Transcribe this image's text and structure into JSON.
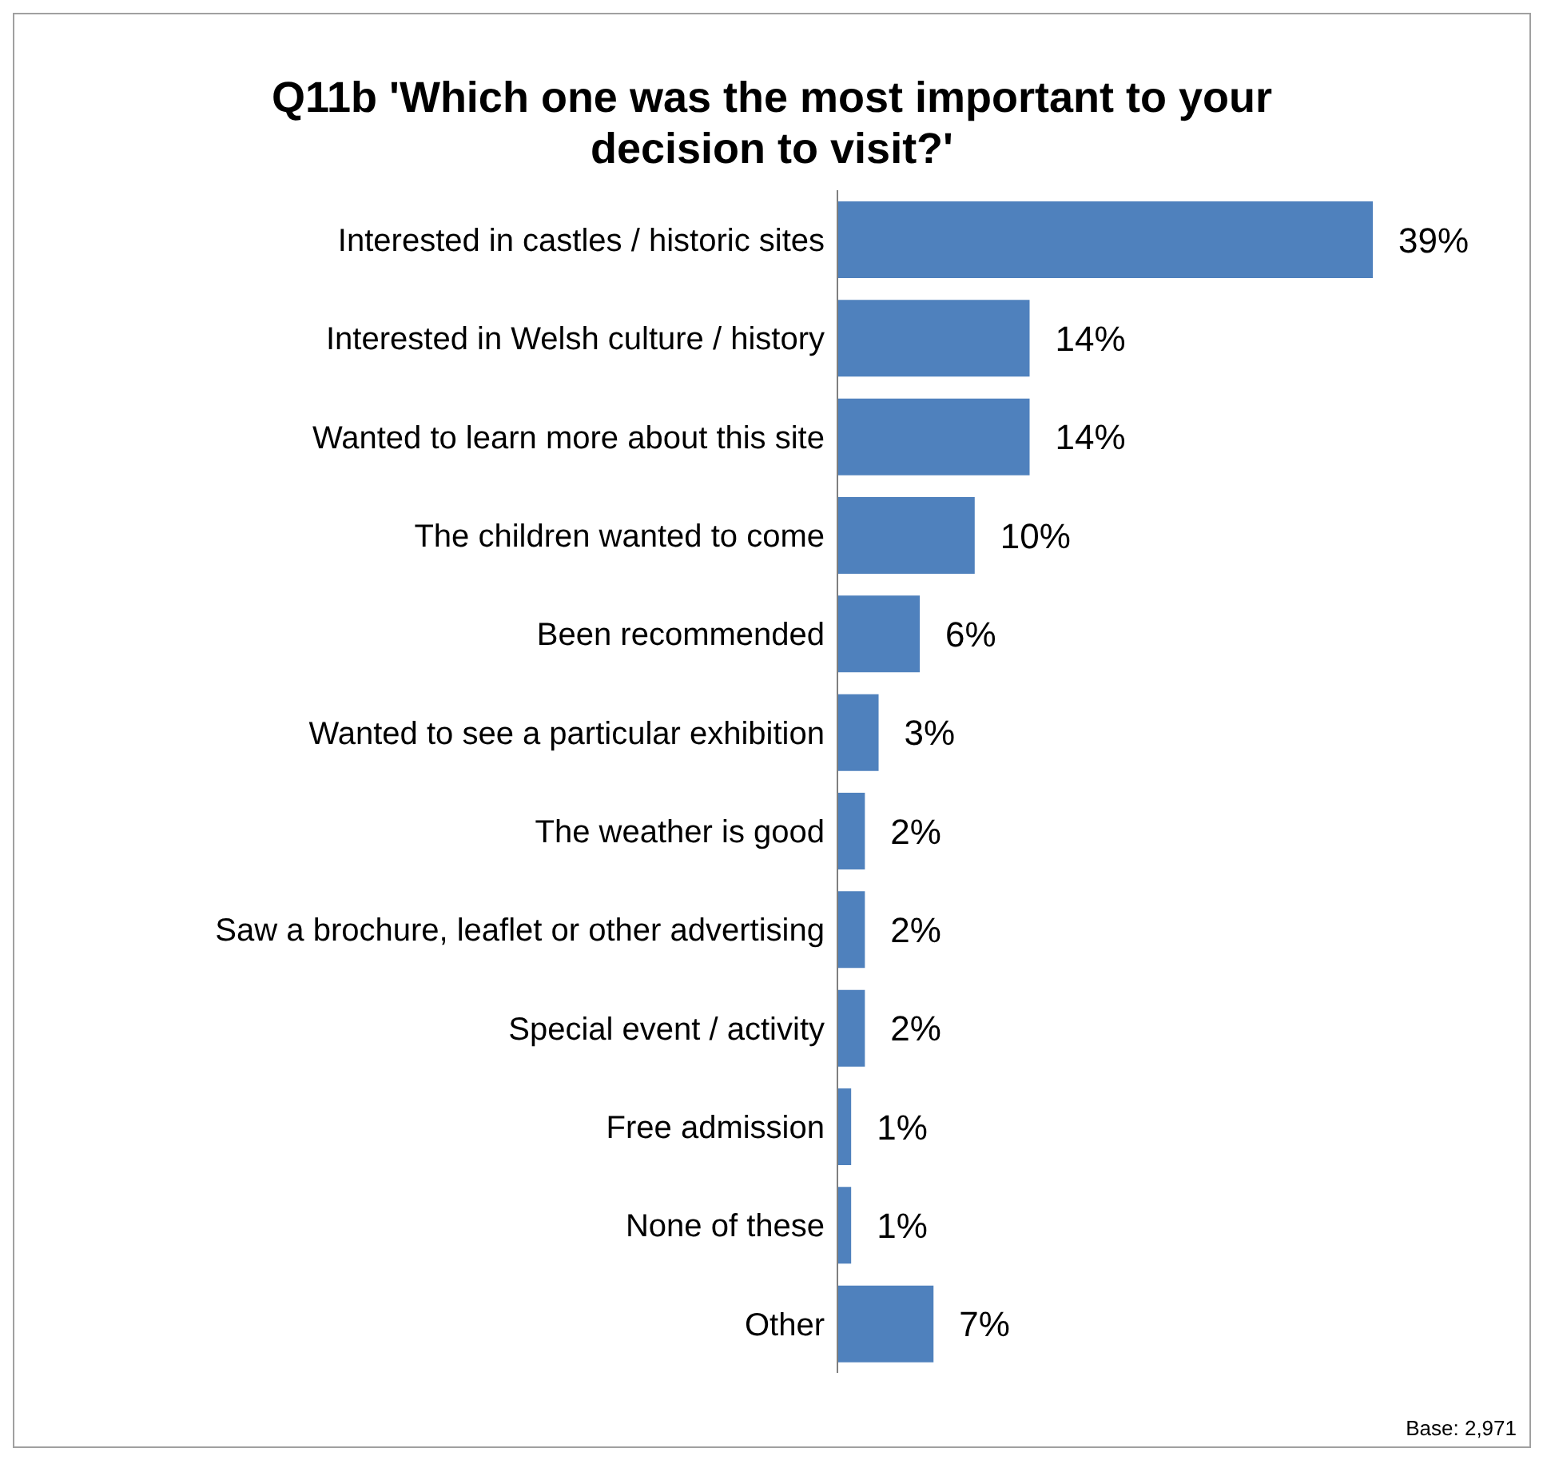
{
  "chart_data": {
    "type": "bar",
    "orientation": "horizontal",
    "title": "Q11b 'Which one was the most important to your decision to visit?'",
    "categories": [
      "Interested in castles / historic sites",
      "Interested in Welsh culture / history",
      "Wanted to learn more about this site",
      "The children wanted to come",
      "Been recommended",
      "Wanted to see a particular exhibition",
      "The weather is good",
      "Saw a brochure, leaflet or other advertising",
      "Special event / activity",
      "Free admission",
      "None of these",
      "Other"
    ],
    "values": [
      39,
      14,
      14,
      10,
      6,
      3,
      2,
      2,
      2,
      1,
      1,
      7
    ],
    "value_labels": [
      "39%",
      "14%",
      "14%",
      "10%",
      "6%",
      "3%",
      "2%",
      "2%",
      "2%",
      "1%",
      "1%",
      "7%"
    ],
    "color": "#4f81bd",
    "tick_labels": "y",
    "annotations": [
      "Base: 2,971"
    ]
  }
}
